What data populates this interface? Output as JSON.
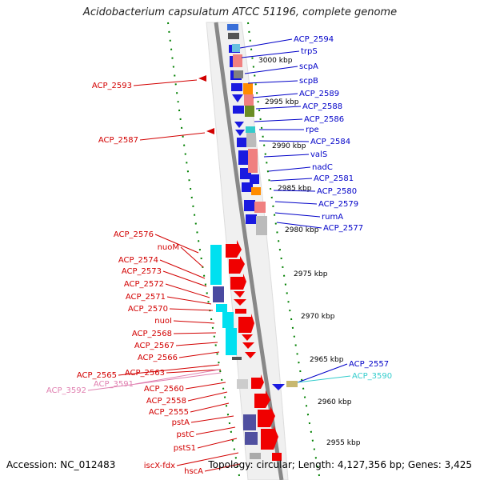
{
  "title": "Acidobacterium capsulatum ATCC 51196, complete genome",
  "footer": {
    "accession": "Accession: NC_012483",
    "topology": "Topology: circular; Length: 4,127,356 bp; Genes: 3,425"
  },
  "colors": {
    "forward_label": "#0000c8",
    "reverse_label": "#d20000",
    "rna_label": "#33cccc",
    "pseudo_label": "#e080b0",
    "backbone": "#888888",
    "tick": "#008000"
  },
  "scale_labels": [
    "3000 kbp",
    "2995 kbp",
    "2990 kbp",
    "2985 kbp",
    "2980 kbp",
    "2975 kbp",
    "2970 kbp",
    "2965 kbp",
    "2960 kbp",
    "2955 kbp"
  ],
  "right_labels": [
    {
      "text": "ACP_2594",
      "kind": "forward"
    },
    {
      "text": "trpS",
      "kind": "forward"
    },
    {
      "text": "scpA",
      "kind": "forward"
    },
    {
      "text": "scpB",
      "kind": "forward"
    },
    {
      "text": "ACP_2589",
      "kind": "forward"
    },
    {
      "text": "ACP_2588",
      "kind": "forward"
    },
    {
      "text": "ACP_2586",
      "kind": "forward"
    },
    {
      "text": "rpe",
      "kind": "forward"
    },
    {
      "text": "ACP_2584",
      "kind": "forward"
    },
    {
      "text": "valS",
      "kind": "forward"
    },
    {
      "text": "nadC",
      "kind": "forward"
    },
    {
      "text": "ACP_2581",
      "kind": "forward"
    },
    {
      "text": "ACP_2580",
      "kind": "forward"
    },
    {
      "text": "ACP_2579",
      "kind": "forward"
    },
    {
      "text": "rumA",
      "kind": "forward"
    },
    {
      "text": "ACP_2577",
      "kind": "forward"
    },
    {
      "text": "ACP_2557",
      "kind": "forward"
    },
    {
      "text": "ACP_3590",
      "kind": "rna"
    }
  ],
  "left_labels": [
    {
      "text": "ACP_2593",
      "kind": "reverse"
    },
    {
      "text": "ACP_2587",
      "kind": "reverse"
    },
    {
      "text": "ACP_2576",
      "kind": "reverse"
    },
    {
      "text": "nuoM",
      "kind": "reverse"
    },
    {
      "text": "ACP_2574",
      "kind": "reverse"
    },
    {
      "text": "ACP_2573",
      "kind": "reverse"
    },
    {
      "text": "ACP_2572",
      "kind": "reverse"
    },
    {
      "text": "ACP_2571",
      "kind": "reverse"
    },
    {
      "text": "ACP_2570",
      "kind": "reverse"
    },
    {
      "text": "nuoI",
      "kind": "reverse"
    },
    {
      "text": "ACP_2568",
      "kind": "reverse"
    },
    {
      "text": "ACP_2567",
      "kind": "reverse"
    },
    {
      "text": "ACP_2566",
      "kind": "reverse"
    },
    {
      "text": "ACP_2565",
      "kind": "reverse"
    },
    {
      "text": "ACP_2563",
      "kind": "reverse"
    },
    {
      "text": "ACP_3591",
      "kind": "pseudo"
    },
    {
      "text": "ACP_3592",
      "kind": "pseudo"
    },
    {
      "text": "ACP_2560",
      "kind": "reverse"
    },
    {
      "text": "ACP_2558",
      "kind": "reverse"
    },
    {
      "text": "ACP_2555",
      "kind": "reverse"
    },
    {
      "text": "pstA",
      "kind": "reverse"
    },
    {
      "text": "pstC",
      "kind": "reverse"
    },
    {
      "text": "pstS1",
      "kind": "reverse"
    },
    {
      "text": "iscX-fdx",
      "kind": "reverse"
    },
    {
      "text": "hscA",
      "kind": "reverse"
    }
  ]
}
